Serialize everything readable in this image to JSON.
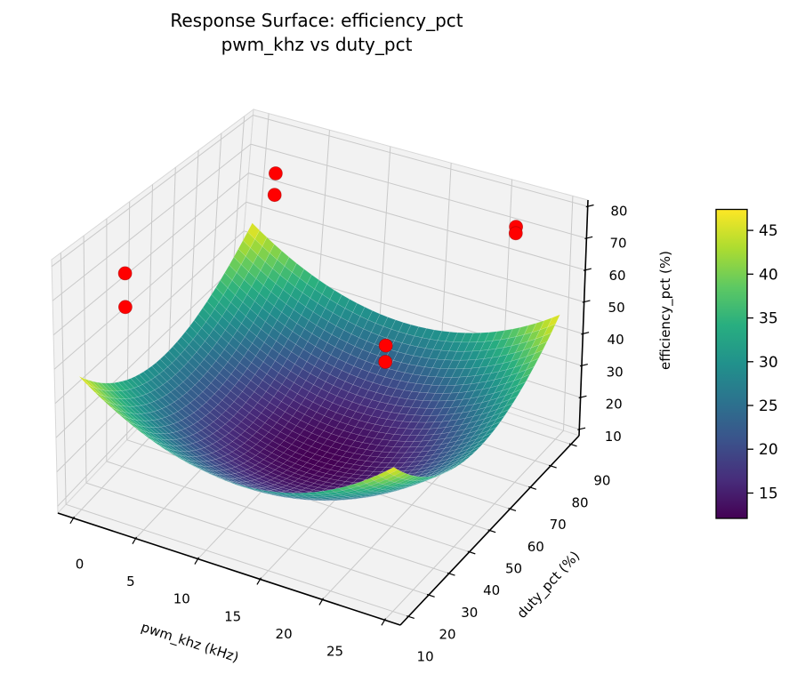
{
  "chart_data": {
    "type": "surface",
    "title": "Response Surface: efficiency_pct",
    "subtitle": "pwm_khz vs duty_pct",
    "x_axis": {
      "label": "pwm_khz (kHz)",
      "ticks": [
        0,
        5,
        10,
        15,
        20,
        25
      ],
      "data_range": [
        0,
        25
      ]
    },
    "y_axis": {
      "label": "duty_pct (%)",
      "ticks": [
        10,
        20,
        30,
        40,
        50,
        60,
        70,
        80,
        90
      ],
      "data_range": [
        10,
        90
      ]
    },
    "z_axis": {
      "label": "efficiency_pct (%)",
      "ticks": [
        10,
        20,
        30,
        40,
        50,
        60,
        70,
        80
      ],
      "data_range": [
        8,
        82
      ]
    },
    "surface": {
      "model": "efficiency = 12 + 17.5*((pwm_khz-12.5)/12.5)^2 + 17.5*((duty_pct-50)/40)^2",
      "minimum": {
        "pwm_khz": 12.5,
        "duty_pct": 50,
        "efficiency_pct": 12
      },
      "corner_max_efficiency_pct": 47,
      "x_domain": [
        0,
        25
      ],
      "y_domain": [
        10,
        90
      ],
      "colormap": "viridis",
      "mesh": 40
    },
    "scatter_points": [
      {
        "pwm_khz": 4.5,
        "duty_pct": 73,
        "efficiency_pct": 79
      },
      {
        "pwm_khz": 4.5,
        "duty_pct": 73,
        "efficiency_pct": 72
      },
      {
        "pwm_khz": 22,
        "duty_pct": 85,
        "efficiency_pct": 74
      },
      {
        "pwm_khz": 22,
        "duty_pct": 85,
        "efficiency_pct": 72
      },
      {
        "pwm_khz": 2,
        "duty_pct": 20,
        "efficiency_pct": 74
      },
      {
        "pwm_khz": 2,
        "duty_pct": 20,
        "efficiency_pct": 64
      },
      {
        "pwm_khz": 16,
        "duty_pct": 60,
        "efficiency_pct": 45
      },
      {
        "pwm_khz": 16,
        "duty_pct": 60,
        "efficiency_pct": 40
      }
    ],
    "colorbar": {
      "ticks": [
        15,
        20,
        25,
        30,
        35,
        40,
        45
      ],
      "vmin": 12.1,
      "vmax": 47.4
    },
    "legend": "none",
    "grid": true,
    "colors": {
      "scatter": "#ff0000",
      "scatter_edge": "#990000",
      "pane": "#f2f2f2",
      "pane_edge": "#d8d8d8",
      "gridline": "#c9c9c9",
      "spine": "#000000",
      "viridis_stops": [
        "#440154",
        "#472d7b",
        "#3b528b",
        "#2c728e",
        "#21918c",
        "#28ae80",
        "#5ec962",
        "#addc30",
        "#fde725"
      ]
    }
  }
}
